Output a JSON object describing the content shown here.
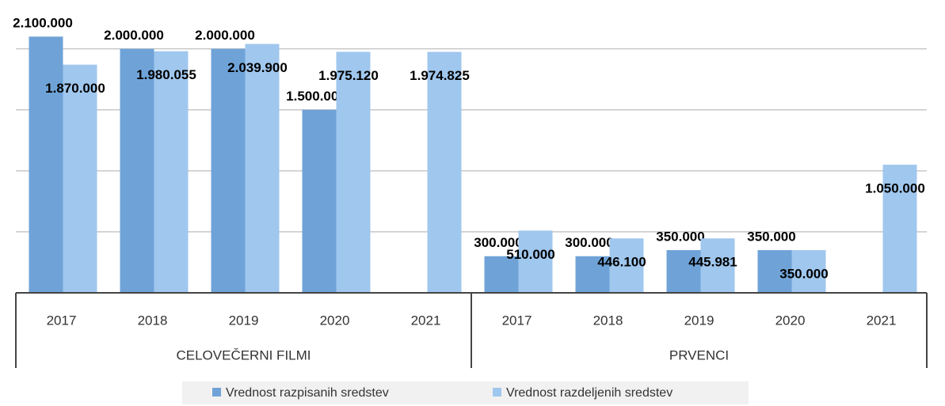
{
  "chart_data": {
    "type": "bar",
    "categories": [
      "2017",
      "2018",
      "2019",
      "2020",
      "2021",
      "2017",
      "2018",
      "2019",
      "2020",
      "2021"
    ],
    "category_groups": [
      "CELOVEČERNI FILMI",
      "PRVENCI"
    ],
    "series": [
      {
        "name": "Vrednost razpisanih sredstev",
        "color": "#6fa3d8",
        "values": [
          2100000,
          2000000,
          2000000,
          1500000,
          null,
          300000,
          300000,
          350000,
          350000,
          null
        ],
        "value_labels": [
          "2.100.000",
          "2.000.000",
          "2.000.000",
          "1.500.000",
          null,
          "300.000",
          "300.000",
          "350.000",
          "350.000",
          null
        ]
      },
      {
        "name": "Vrednost razdeljenih sredstev",
        "color": "#a0c7ee",
        "values": [
          1870000,
          1980055,
          2039900,
          1975120,
          1974825,
          510000,
          446100,
          445981,
          350000,
          1050000
        ],
        "value_labels": [
          "1.870.000",
          "1.980.055",
          "2.039.900",
          "1.975.120",
          "1.974.825",
          "510.000",
          "446.100",
          "445.981",
          "350.000",
          "1.050.000"
        ]
      }
    ],
    "ylim": [
      0,
      2400000
    ],
    "yticks": [
      0,
      500000,
      1000000,
      1500000,
      2000000
    ],
    "grid": true,
    "legend": "bottom"
  }
}
